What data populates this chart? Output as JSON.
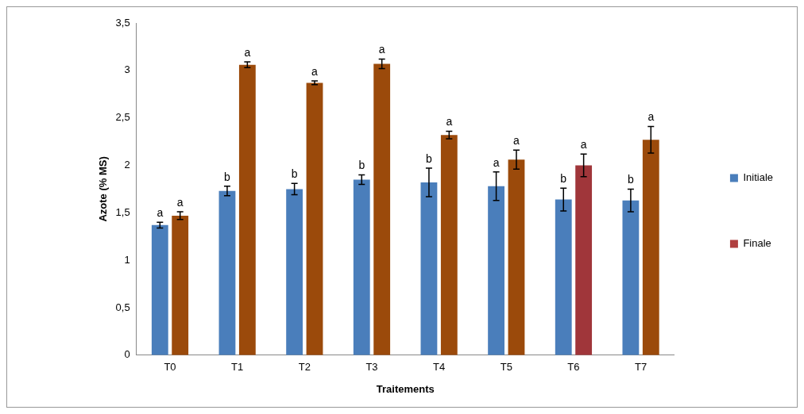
{
  "chart_data": {
    "type": "bar",
    "xlabel": "Traitements",
    "ylabel": "Azote (% MS)",
    "categories": [
      "T0",
      "T1",
      "T2",
      "T3",
      "T4",
      "T5",
      "T6",
      "T7"
    ],
    "series": [
      {
        "name": "Initiale",
        "color": "#4a7ebb",
        "values": [
          1.37,
          1.73,
          1.75,
          1.85,
          1.82,
          1.78,
          1.64,
          1.63
        ],
        "errors": [
          0.03,
          0.05,
          0.06,
          0.05,
          0.15,
          0.15,
          0.12,
          0.12
        ],
        "value_labels": [
          "a",
          "b",
          "b",
          "b",
          "b",
          "a",
          "b",
          "b"
        ]
      },
      {
        "name": "Finale",
        "color": "#b04040",
        "colors": [
          "#9b4a0b",
          "#9b4a0b",
          "#9b4a0b",
          "#9b4a0b",
          "#9b4a0b",
          "#9b4a0b",
          "#a0363a",
          "#9b4a0b"
        ],
        "values": [
          1.47,
          3.06,
          2.87,
          3.07,
          2.32,
          2.06,
          2.0,
          2.27
        ],
        "errors": [
          0.04,
          0.03,
          0.02,
          0.05,
          0.04,
          0.1,
          0.12,
          0.14
        ],
        "value_labels": [
          "a",
          "a",
          "a",
          "a",
          "a",
          "a",
          "a",
          "a"
        ]
      }
    ],
    "ylim": [
      0,
      3.5
    ],
    "yticks": [
      0,
      {
        "value": 0.5,
        "label": "0,5"
      },
      1,
      {
        "value": 1.5,
        "label": "1,5"
      },
      2,
      {
        "value": 2.5,
        "label": "2,5"
      },
      3,
      {
        "value": 3.5,
        "label": "3,5"
      }
    ],
    "grid": false,
    "legend": "right"
  }
}
